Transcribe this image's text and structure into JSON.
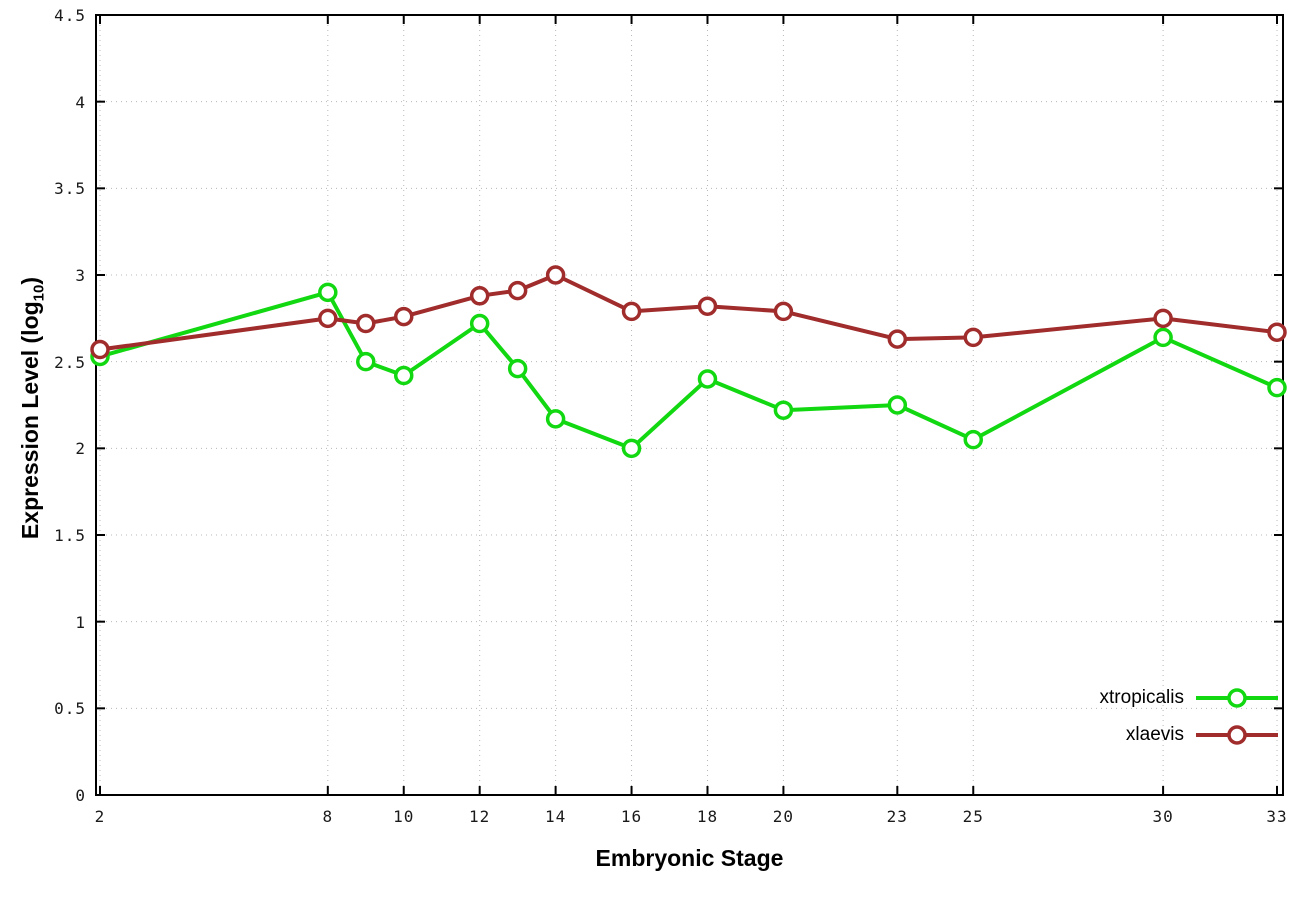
{
  "chart_data": {
    "type": "line",
    "title": "",
    "xlabel": "Embryonic Stage",
    "ylabel": "Expression Level (log10)",
    "xlim": [
      2,
      33
    ],
    "ylim": [
      0,
      4.5
    ],
    "grid": true,
    "legend_position": "bottom-right",
    "xticks": [
      2,
      8,
      10,
      12,
      14,
      16,
      18,
      20,
      23,
      25,
      30,
      33
    ],
    "yticks": [
      0,
      0.5,
      1,
      1.5,
      2,
      2.5,
      3,
      3.5,
      4,
      4.5
    ],
    "x": [
      2,
      8,
      9,
      10,
      12,
      13,
      14,
      16,
      18,
      20,
      23,
      25,
      30,
      33
    ],
    "series": [
      {
        "name": "xtropicalis",
        "color": "#12d812",
        "values": [
          2.53,
          2.9,
          2.5,
          2.42,
          2.72,
          2.46,
          2.17,
          2.0,
          2.4,
          2.22,
          2.25,
          2.05,
          2.64,
          2.35
        ]
      },
      {
        "name": "xlaevis",
        "color": "#a02c2c",
        "values": [
          2.57,
          2.75,
          2.72,
          2.76,
          2.88,
          2.91,
          3.0,
          2.79,
          2.82,
          2.79,
          2.63,
          2.64,
          2.75,
          2.67
        ]
      }
    ]
  },
  "labels": {
    "y_main": "Expression Level (log",
    "y_sub": "10",
    "y_end": ")"
  },
  "style": {
    "grid_color": "#b8b8b8",
    "border_color": "#000000",
    "background": "#ffffff"
  }
}
